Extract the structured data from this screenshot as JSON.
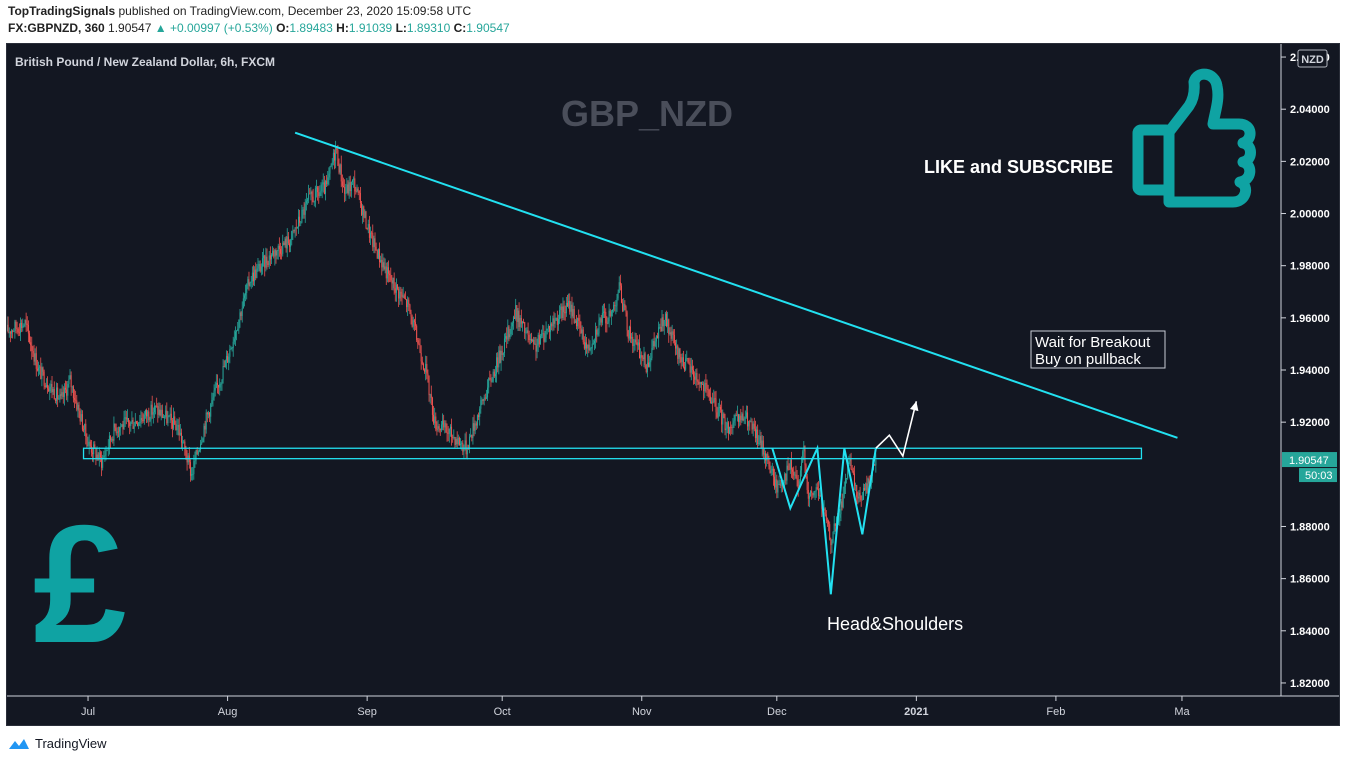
{
  "header": {
    "publisher": "TopTradingSignals",
    "published_text": "published on TradingView.com, December 23, 2020 15:09:58 UTC",
    "symbol": "FX:GBPNZD, 360",
    "last": "1.90547",
    "change": "▲ +0.00997 (+0.53%)",
    "o_label": "O:",
    "o": "1.89483",
    "h_label": "H:",
    "h": "1.91039",
    "l_label": "L:",
    "l": "1.89310",
    "c_label": "C:",
    "c": "1.90547"
  },
  "chart_data": {
    "type": "candlestick",
    "instrument_title": "British Pound / New Zealand Dollar, 6h, FXCM",
    "watermark": "GBP_NZD",
    "currency_label": "NZD",
    "y_ticks": [
      "2.06000",
      "2.04000",
      "2.02000",
      "2.00000",
      "1.98000",
      "1.96000",
      "1.94000",
      "1.92000",
      "1.88000",
      "1.86000",
      "1.84000",
      "1.82000"
    ],
    "y_tick_values": [
      2.06,
      2.04,
      2.02,
      2.0,
      1.98,
      1.96,
      1.94,
      1.92,
      1.88,
      1.86,
      1.84,
      1.82
    ],
    "ylim": [
      1.815,
      2.065
    ],
    "x_ticks": [
      "Jul",
      "Aug",
      "Sep",
      "Oct",
      "Nov",
      "Dec",
      "2021",
      "Feb",
      "Ma"
    ],
    "x_tick_days": [
      0,
      31,
      62,
      92,
      123,
      153,
      184,
      215,
      243
    ],
    "x_tick_dates": [
      "2020-07-01",
      "2020-08-01",
      "2020-09-01",
      "2020-10-01",
      "2020-11-01",
      "2020-12-01",
      "2021-01-01",
      "2021-02-01",
      "2021-03-01"
    ],
    "xlim_days": [
      -18,
      265
    ],
    "price_anchors": [
      [
        "2020-06-13",
        1.955
      ],
      [
        "2020-06-17",
        1.958
      ],
      [
        "2020-06-20",
        1.94
      ],
      [
        "2020-06-25",
        1.928
      ],
      [
        "2020-06-27",
        1.936
      ],
      [
        "2020-07-01",
        1.912
      ],
      [
        "2020-07-04",
        1.905
      ],
      [
        "2020-07-07",
        1.918
      ],
      [
        "2020-07-11",
        1.92
      ],
      [
        "2020-07-16",
        1.925
      ],
      [
        "2020-07-21",
        1.918
      ],
      [
        "2020-07-24",
        1.9
      ],
      [
        "2020-07-27",
        1.92
      ],
      [
        "2020-08-01",
        1.945
      ],
      [
        "2020-08-06",
        1.975
      ],
      [
        "2020-08-11",
        1.985
      ],
      [
        "2020-08-15",
        1.99
      ],
      [
        "2020-08-19",
        2.005
      ],
      [
        "2020-08-23",
        2.01
      ],
      [
        "2020-08-25",
        2.025
      ],
      [
        "2020-08-27",
        2.008
      ],
      [
        "2020-08-29",
        2.012
      ],
      [
        "2020-09-02",
        1.99
      ],
      [
        "2020-09-06",
        1.975
      ],
      [
        "2020-09-10",
        1.965
      ],
      [
        "2020-09-14",
        1.94
      ],
      [
        "2020-09-16",
        1.92
      ],
      [
        "2020-09-20",
        1.915
      ],
      [
        "2020-09-23",
        1.91
      ],
      [
        "2020-09-26",
        1.925
      ],
      [
        "2020-10-01",
        1.948
      ],
      [
        "2020-10-04",
        1.962
      ],
      [
        "2020-10-08",
        1.948
      ],
      [
        "2020-10-12",
        1.958
      ],
      [
        "2020-10-16",
        1.965
      ],
      [
        "2020-10-20",
        1.948
      ],
      [
        "2020-10-23",
        1.96
      ],
      [
        "2020-10-25",
        1.96
      ],
      [
        "2020-10-27",
        1.972
      ],
      [
        "2020-10-29",
        1.955
      ],
      [
        "2020-11-02",
        1.942
      ],
      [
        "2020-11-06",
        1.96
      ],
      [
        "2020-11-09",
        1.946
      ],
      [
        "2020-11-12",
        1.94
      ],
      [
        "2020-11-16",
        1.93
      ],
      [
        "2020-11-20",
        1.918
      ],
      [
        "2020-11-24",
        1.922
      ],
      [
        "2020-11-28",
        1.91
      ],
      [
        "2020-12-01",
        1.895
      ],
      [
        "2020-12-04",
        1.903
      ],
      [
        "2020-12-06",
        1.895
      ],
      [
        "2020-12-07",
        1.912
      ],
      [
        "2020-12-08",
        1.89
      ],
      [
        "2020-12-10",
        1.895
      ],
      [
        "2020-12-13",
        1.875
      ],
      [
        "2020-12-15",
        1.885
      ],
      [
        "2020-12-17",
        1.905
      ],
      [
        "2020-12-19",
        1.89
      ],
      [
        "2020-12-21",
        1.895
      ],
      [
        "2020-12-23",
        1.90547
      ]
    ],
    "last_price_label": "1.90547",
    "countdown_label": "50:03",
    "colors": {
      "up": "#26a69a",
      "down": "#ef5350",
      "drawing": "#22e1f1",
      "logo": "#0fa3a3",
      "background": "#131722"
    },
    "annotations": {
      "like_subscribe": "LIKE and SUBSCRIBE",
      "wait_line1": "Wait for Breakout",
      "wait_line2": "Buy on pullback",
      "pattern": "Head&Shoulders",
      "pound_symbol": "£"
    },
    "drawings": {
      "trendline": [
        [
          "2020-08-16",
          2.031
        ],
        [
          "2021-02-28",
          1.914
        ]
      ],
      "support_zone": {
        "from": "2020-06-30",
        "to": "2021-02-20",
        "price_low": 1.906,
        "price_high": 1.91
      },
      "head_and_shoulders": [
        [
          "2020-11-30",
          1.91
        ],
        [
          "2020-12-04",
          1.887
        ],
        [
          "2020-12-10",
          1.91
        ],
        [
          "2020-12-13",
          1.854
        ],
        [
          "2020-12-16",
          1.91
        ],
        [
          "2020-12-20",
          1.877
        ],
        [
          "2020-12-23",
          1.91
        ]
      ],
      "projection": [
        [
          "2020-12-23",
          1.91
        ],
        [
          "2020-12-26",
          1.915
        ],
        [
          "2020-12-29",
          1.907
        ],
        [
          "2021-01-01",
          1.928
        ]
      ]
    }
  },
  "footer": {
    "brand": "TradingView"
  }
}
